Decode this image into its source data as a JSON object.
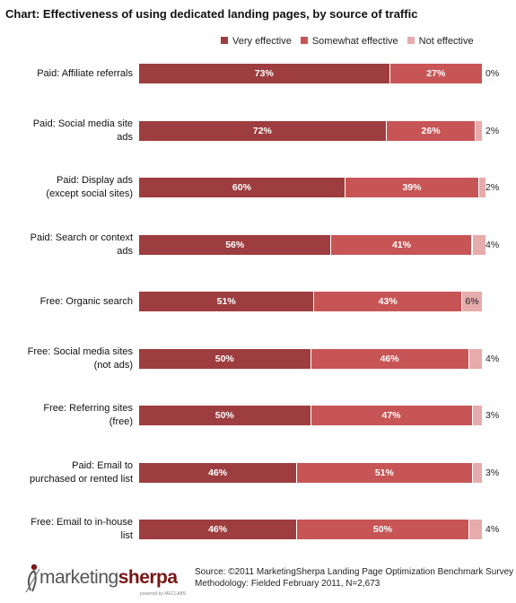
{
  "chart_data": {
    "type": "bar",
    "orientation": "horizontal",
    "stacked": true,
    "title": "Chart: Effectiveness of using dedicated landing pages, by source of traffic",
    "categories": [
      "Paid:  Affiliate referrals",
      "Paid:  Social media site ads",
      "Paid:  Display ads (except social sites)",
      "Paid:  Search or context ads",
      "Free:  Organic search",
      "Free:  Social media sites (not ads)",
      "Free:  Referring sites (free)",
      "Paid:  Email  to purchased or rented list",
      "Free:  Email to in-house list"
    ],
    "category_lines": [
      [
        "Paid:  Affiliate referrals"
      ],
      [
        "Paid:  Social media site",
        "ads"
      ],
      [
        "Paid:  Display ads",
        "(except social sites)"
      ],
      [
        "Paid:  Search or context",
        "ads"
      ],
      [
        "Free:  Organic search"
      ],
      [
        "Free:  Social media sites",
        "(not ads)"
      ],
      [
        "Free:  Referring sites",
        "(free)"
      ],
      [
        "Paid:  Email  to",
        "purchased or rented list"
      ],
      [
        "Free:  Email to in-house",
        "list"
      ]
    ],
    "series": [
      {
        "name": "Very effective",
        "color": "#9e3d3f",
        "values": [
          73,
          72,
          60,
          56,
          51,
          50,
          50,
          46,
          46
        ]
      },
      {
        "name": "Somewhat effective",
        "color": "#c85555",
        "values": [
          27,
          26,
          39,
          41,
          43,
          46,
          47,
          51,
          50
        ]
      },
      {
        "name": "Not effective",
        "color": "#e6abab",
        "values": [
          0,
          2,
          2,
          4,
          6,
          4,
          3,
          3,
          4
        ]
      }
    ],
    "value_suffix": "%",
    "xlim": [
      0,
      100
    ],
    "legend_position": "top-right",
    "grid": false
  },
  "source": {
    "line1": "Source: ©2011 MarketingSherpa Landing Page Optimization Benchmark Survey",
    "line2": "Methodology: Fielded February 2011, N=2,673"
  },
  "logo": {
    "word_left": "marketing",
    "word_right": "sherpa",
    "tagline": "powered by MECLABS",
    "icon": "sherpa-figure-icon"
  }
}
